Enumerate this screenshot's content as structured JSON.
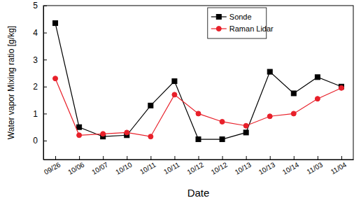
{
  "chart_data": {
    "type": "line",
    "x_label": "Date",
    "y_label": "Water vapor Mixing ratio [g/kg]",
    "categories": [
      "09/26",
      "10/06",
      "10/07",
      "10/10",
      "10/11",
      "10/11",
      "10/12",
      "10/12",
      "10/13",
      "10/13",
      "10/14",
      "11/03",
      "11/04"
    ],
    "series": [
      {
        "name": "Sonde",
        "color": "#000000",
        "marker": "square",
        "line_style": "solid",
        "values": [
          4.35,
          0.5,
          0.15,
          0.2,
          1.3,
          2.2,
          0.05,
          0.05,
          0.3,
          2.55,
          1.75,
          2.35,
          2.0
        ]
      },
      {
        "name": "Raman Lidar",
        "color": "#e8202a",
        "marker": "circle",
        "line_style": "solid",
        "values": [
          2.3,
          0.2,
          0.25,
          0.3,
          0.15,
          1.7,
          1.0,
          0.7,
          0.55,
          0.9,
          1.0,
          1.55,
          1.95
        ]
      }
    ],
    "ylim": [
      -0.7,
      5
    ],
    "yticks": [
      0,
      1,
      2,
      3,
      4,
      5
    ],
    "legend": "top",
    "grid": false
  }
}
